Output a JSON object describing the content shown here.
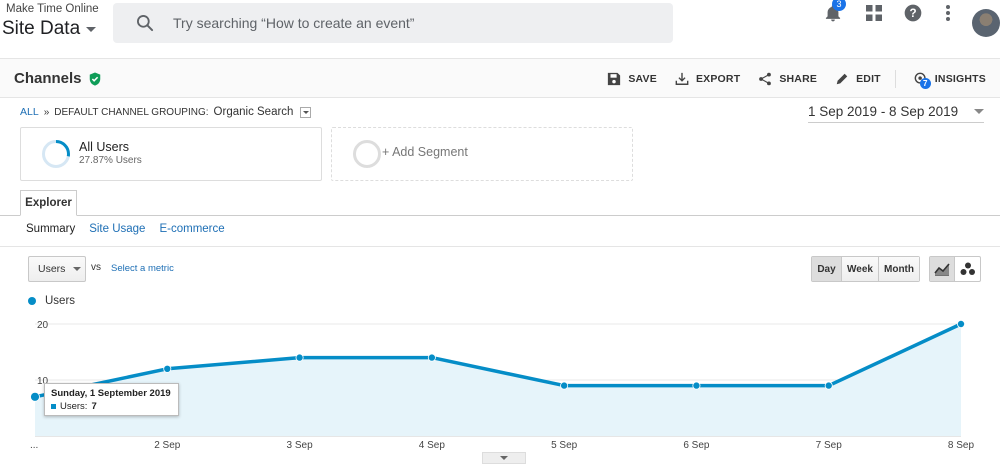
{
  "topbar": {
    "account": "Make Time Online",
    "property": "Site Data",
    "search_placeholder": "Try searching “How to create an event”",
    "notification_count": "3",
    "icons": [
      "bell-icon",
      "apps-grid-icon",
      "help-icon",
      "more-vert-icon",
      "avatar"
    ]
  },
  "header": {
    "title": "Channels",
    "actions": [
      {
        "label": "SAVE",
        "icon": "save-icon"
      },
      {
        "label": "EXPORT",
        "icon": "export-icon"
      },
      {
        "label": "SHARE",
        "icon": "share-icon"
      },
      {
        "label": "EDIT",
        "icon": "edit-icon"
      },
      {
        "label": "INSIGHTS",
        "icon": "insights-icon",
        "badge": "7"
      }
    ]
  },
  "breadcrumb": {
    "all": "ALL",
    "separator": "»",
    "grouping_label": "DEFAULT CHANNEL GROUPING:",
    "grouping_value": "Organic Search"
  },
  "date_range": "1 Sep 2019 - 8 Sep 2019",
  "segments": [
    {
      "name": "All Users",
      "detail": "27.87% Users",
      "share": 0.2787
    },
    {
      "name": "+ Add Segment"
    }
  ],
  "tabs": {
    "main": "Explorer",
    "sub": [
      "Summary",
      "Site Usage",
      "E-commerce"
    ],
    "active_sub": "Summary"
  },
  "controls": {
    "metric": "Users",
    "vs": "vs",
    "select_metric": "Select a metric",
    "periods": [
      "Day",
      "Week",
      "Month"
    ],
    "active_period": "Day",
    "chart_types": [
      "line-chart-icon",
      "motion-chart-icon"
    ]
  },
  "tooltip": {
    "date": "Sunday, 1 September 2019",
    "metric": "Users:",
    "value": "7"
  },
  "chart_data": {
    "type": "area",
    "x": [
      "1 Sep",
      "2 Sep",
      "3 Sep",
      "4 Sep",
      "5 Sep",
      "6 Sep",
      "7 Sep",
      "8 Sep"
    ],
    "tick_labels": [
      "...",
      "2 Sep",
      "3 Sep",
      "4 Sep",
      "5 Sep",
      "6 Sep",
      "7 Sep",
      "8 Sep"
    ],
    "series": [
      {
        "name": "Users",
        "values": [
          7,
          12,
          14,
          14,
          9,
          9,
          9,
          20
        ],
        "color": "#058dc7"
      }
    ],
    "yticks": [
      10,
      20
    ],
    "ylim": [
      0,
      20
    ],
    "grid": true,
    "legend": "top-left"
  }
}
